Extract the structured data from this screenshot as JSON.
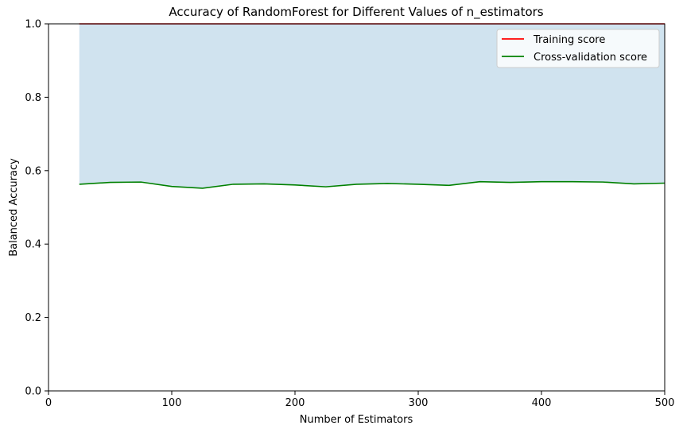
{
  "chart_data": {
    "type": "line",
    "title": "Accuracy of RandomForest for Different Values of n_estimators",
    "xlabel": "Number of Estimators",
    "ylabel": "Balanced Accuracy",
    "xlim": [
      0,
      500
    ],
    "ylim": [
      0.0,
      1.0
    ],
    "xticks": [
      "0",
      "100",
      "200",
      "300",
      "400",
      "500"
    ],
    "yticks": [
      "0.0",
      "0.2",
      "0.4",
      "0.6",
      "0.8",
      "1.0"
    ],
    "grid": false,
    "legend_position": "top-right",
    "x": [
      25,
      50,
      75,
      100,
      125,
      150,
      175,
      200,
      225,
      250,
      275,
      300,
      325,
      350,
      375,
      400,
      425,
      450,
      475,
      500
    ],
    "series": [
      {
        "name": "Training score",
        "color": "#ff0000",
        "values": [
          1.0,
          1.0,
          1.0,
          1.0,
          1.0,
          1.0,
          1.0,
          1.0,
          1.0,
          1.0,
          1.0,
          1.0,
          1.0,
          1.0,
          1.0,
          1.0,
          1.0,
          1.0,
          1.0,
          1.0
        ]
      },
      {
        "name": "Cross-validation score",
        "color": "#008000",
        "values": [
          0.563,
          0.568,
          0.569,
          0.557,
          0.552,
          0.563,
          0.564,
          0.561,
          0.556,
          0.563,
          0.565,
          0.563,
          0.56,
          0.57,
          0.568,
          0.57,
          0.57,
          0.569,
          0.564,
          0.566
        ]
      }
    ],
    "band": {
      "color": "#d0e3ef",
      "lower": [
        0.563,
        0.568,
        0.569,
        0.557,
        0.552,
        0.563,
        0.564,
        0.561,
        0.556,
        0.563,
        0.565,
        0.563,
        0.56,
        0.57,
        0.568,
        0.57,
        0.57,
        0.569,
        0.564,
        0.566
      ],
      "upper": [
        1.0,
        1.0,
        1.0,
        1.0,
        1.0,
        1.0,
        1.0,
        1.0,
        1.0,
        1.0,
        1.0,
        1.0,
        1.0,
        1.0,
        1.0,
        1.0,
        1.0,
        1.0,
        1.0,
        1.0
      ]
    }
  }
}
